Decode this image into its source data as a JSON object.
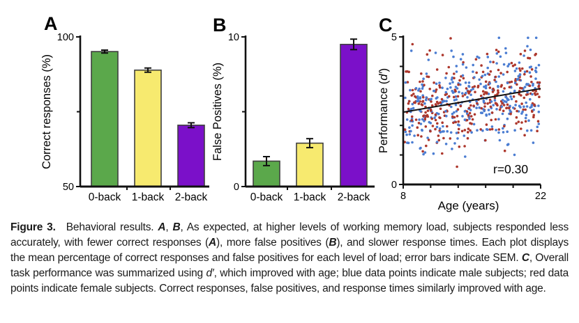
{
  "page": {
    "background": "#ffffff"
  },
  "chart_data": [
    {
      "type": "bar",
      "panel_letter": "A",
      "ylabel": "Correct responses (%)",
      "categories": [
        "0-back",
        "1-back",
        "2-back"
      ],
      "values": [
        95.1,
        88.9,
        70.5
      ],
      "sem": [
        0.5,
        0.7,
        0.8
      ],
      "ylim": [
        50,
        100
      ],
      "ytick_labels": [
        {
          "value": 100,
          "label": "100"
        },
        {
          "value": 50,
          "label": "50"
        }
      ],
      "minor_yticks": [
        75
      ],
      "bar_colors": [
        "#5ba84b",
        "#f7ea6f",
        "#7b10c9"
      ],
      "bar_outline": "#3f3f3f",
      "error_bar_color": "#111111",
      "grid": false
    },
    {
      "type": "bar",
      "panel_letter": "B",
      "ylabel": "False Positives (%)",
      "categories": [
        "0-back",
        "1-back",
        "2-back"
      ],
      "values": [
        1.7,
        2.9,
        9.5
      ],
      "sem": [
        0.3,
        0.3,
        0.35
      ],
      "ylim": [
        0,
        10
      ],
      "ytick_labels": [
        {
          "value": 10,
          "label": "10"
        },
        {
          "value": 0,
          "label": "0"
        }
      ],
      "minor_yticks": [
        5
      ],
      "bar_colors": [
        "#5ba84b",
        "#f7ea6f",
        "#7b10c9"
      ],
      "bar_outline": "#3f3f3f",
      "error_bar_color": "#111111",
      "grid": false
    },
    {
      "type": "scatter",
      "panel_letter": "C",
      "ylabel": "Performance (d′)",
      "ylabel_segments": [
        {
          "text": "Performance ("
        },
        {
          "text": "d′",
          "italic": true
        },
        {
          "text": ")"
        }
      ],
      "xlabel": "Age (years)",
      "xlim": [
        8,
        22
      ],
      "ylim": [
        0,
        5
      ],
      "xtick_labels": [
        {
          "value": 8,
          "label": "8"
        },
        {
          "value": 22,
          "label": "22"
        }
      ],
      "ytick_labels": [
        {
          "value": 0,
          "label": "0"
        },
        {
          "value": 5,
          "label": "5"
        }
      ],
      "minor_yticks": [
        1,
        2,
        3,
        4
      ],
      "minor_xticks": [
        10.8,
        13.6,
        16.4,
        19.2
      ],
      "series": [
        {
          "name": "male subjects",
          "color": "#4b7dd2",
          "n_points": 330
        },
        {
          "name": "female subjects",
          "color": "#ad372c",
          "n_points": 330
        }
      ],
      "trend_line": {
        "x1": 8,
        "y1": 2.45,
        "x2": 22,
        "y2": 3.25,
        "color": "#111111"
      },
      "annotation": "r=0.30",
      "scatter_y_sd": 0.72,
      "point_y_clip": [
        0.6,
        4.97
      ],
      "point_x_range": [
        8.15,
        21.9
      ],
      "random_seed": 7,
      "grid": false,
      "legend": "none"
    }
  ],
  "caption": {
    "segments": [
      {
        "text": "Figure 3.",
        "bold": true
      },
      {
        "text": "  Behavioral results. "
      },
      {
        "text": "A",
        "bold": true,
        "italic": true
      },
      {
        "text": ", "
      },
      {
        "text": "B",
        "bold": true,
        "italic": true
      },
      {
        "text": ", As expected, at higher levels of working memory load, subjects responded less accurately, with fewer correct responses ("
      },
      {
        "text": "A",
        "bold": true,
        "italic": true
      },
      {
        "text": "), more false positives ("
      },
      {
        "text": "B",
        "bold": true,
        "italic": true
      },
      {
        "text": "), and slower response times. Each plot displays the mean percentage of correct responses and false positives for each level of load; error bars indicate SEM. "
      },
      {
        "text": "C",
        "bold": true,
        "italic": true
      },
      {
        "text": ", Overall task performance was summarized using "
      },
      {
        "text": "d′",
        "italic": true
      },
      {
        "text": ", which improved with age; blue data points indicate male subjects; red data points indicate female subjects. Correct responses, false positives, and response times similarly improved with age."
      }
    ]
  }
}
